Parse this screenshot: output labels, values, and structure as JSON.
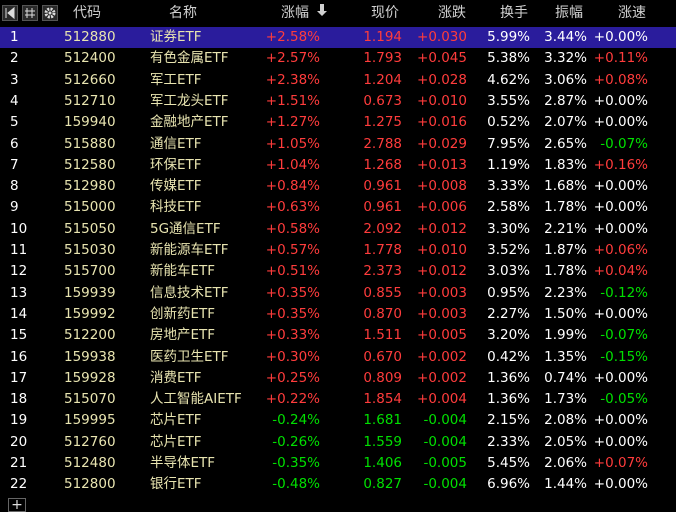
{
  "header": {
    "columns": [
      "代码",
      "名称",
      "涨幅",
      "现价",
      "涨跌",
      "换手",
      "振幅",
      "涨速"
    ]
  },
  "rows": [
    [
      "1",
      "512880",
      "证券ETF",
      "+2.58%",
      "1.194",
      "+0.030",
      "5.99%",
      "3.44%",
      "+0.00%"
    ],
    [
      "2",
      "512400",
      "有色金属ETF",
      "+2.57%",
      "1.793",
      "+0.045",
      "5.38%",
      "3.32%",
      "+0.11%"
    ],
    [
      "3",
      "512660",
      "军工ETF",
      "+2.38%",
      "1.204",
      "+0.028",
      "4.62%",
      "3.06%",
      "+0.08%"
    ],
    [
      "4",
      "512710",
      "军工龙头ETF",
      "+1.51%",
      "0.673",
      "+0.010",
      "3.55%",
      "2.87%",
      "+0.00%"
    ],
    [
      "5",
      "159940",
      "金融地产ETF",
      "+1.27%",
      "1.275",
      "+0.016",
      "0.52%",
      "2.07%",
      "+0.00%"
    ],
    [
      "6",
      "515880",
      "通信ETF",
      "+1.05%",
      "2.788",
      "+0.029",
      "7.95%",
      "2.65%",
      "-0.07%"
    ],
    [
      "7",
      "512580",
      "环保ETF",
      "+1.04%",
      "1.268",
      "+0.013",
      "1.19%",
      "1.83%",
      "+0.16%"
    ],
    [
      "8",
      "512980",
      "传媒ETF",
      "+0.84%",
      "0.961",
      "+0.008",
      "3.33%",
      "1.68%",
      "+0.00%"
    ],
    [
      "9",
      "515000",
      "科技ETF",
      "+0.63%",
      "0.961",
      "+0.006",
      "2.58%",
      "1.78%",
      "+0.00%"
    ],
    [
      "10",
      "515050",
      "5G通信ETF",
      "+0.58%",
      "2.092",
      "+0.012",
      "3.30%",
      "2.21%",
      "+0.00%"
    ],
    [
      "11",
      "515030",
      "新能源车ETF",
      "+0.57%",
      "1.778",
      "+0.010",
      "3.52%",
      "1.87%",
      "+0.06%"
    ],
    [
      "12",
      "515700",
      "新能车ETF",
      "+0.51%",
      "2.373",
      "+0.012",
      "3.03%",
      "1.78%",
      "+0.04%"
    ],
    [
      "13",
      "159939",
      "信息技术ETF",
      "+0.35%",
      "0.855",
      "+0.003",
      "0.95%",
      "2.23%",
      "-0.12%"
    ],
    [
      "14",
      "159992",
      "创新药ETF",
      "+0.35%",
      "0.870",
      "+0.003",
      "2.27%",
      "1.50%",
      "+0.00%"
    ],
    [
      "15",
      "512200",
      "房地产ETF",
      "+0.33%",
      "1.511",
      "+0.005",
      "3.20%",
      "1.99%",
      "-0.07%"
    ],
    [
      "16",
      "159938",
      "医药卫生ETF",
      "+0.30%",
      "0.670",
      "+0.002",
      "0.42%",
      "1.35%",
      "-0.15%"
    ],
    [
      "17",
      "159928",
      "消费ETF",
      "+0.25%",
      "0.809",
      "+0.002",
      "1.36%",
      "0.74%",
      "+0.00%"
    ],
    [
      "18",
      "515070",
      "人工智能AIETF",
      "+0.22%",
      "1.854",
      "+0.004",
      "1.36%",
      "1.73%",
      "-0.05%"
    ],
    [
      "19",
      "159995",
      "芯片ETF",
      "-0.24%",
      "1.681",
      "-0.004",
      "2.15%",
      "2.08%",
      "+0.00%"
    ],
    [
      "20",
      "512760",
      "芯片ETF",
      "-0.26%",
      "1.559",
      "-0.004",
      "2.33%",
      "2.05%",
      "+0.00%"
    ],
    [
      "21",
      "512480",
      "半导体ETF",
      "-0.35%",
      "1.406",
      "-0.005",
      "5.45%",
      "2.06%",
      "+0.07%"
    ],
    [
      "22",
      "512800",
      "银行ETF",
      "-0.48%",
      "0.827",
      "-0.004",
      "6.96%",
      "1.44%",
      "+0.00%"
    ]
  ]
}
